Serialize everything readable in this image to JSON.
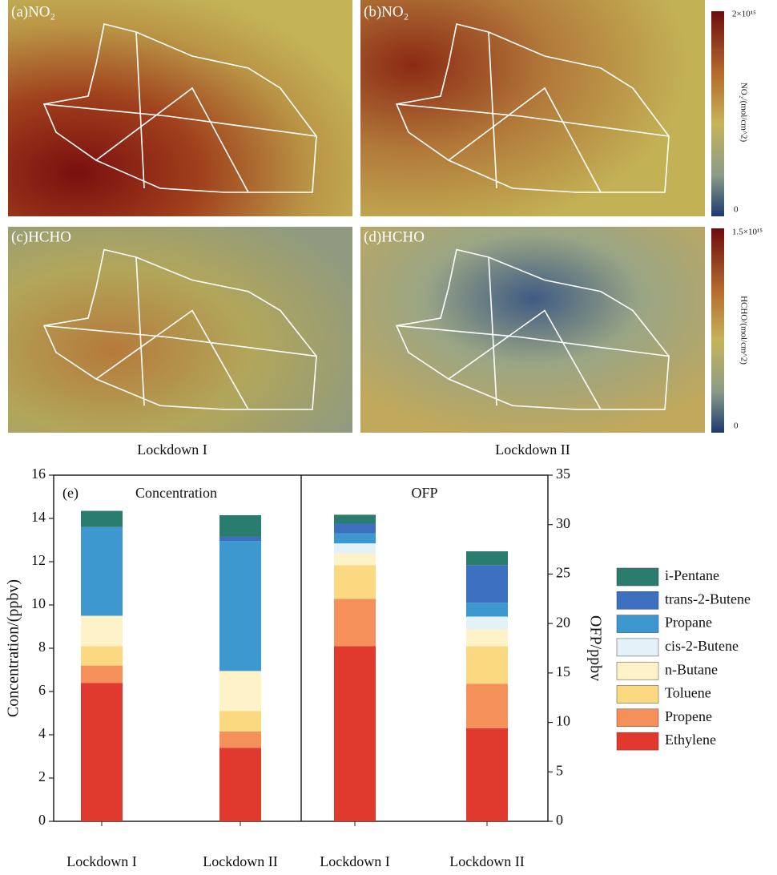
{
  "maps": {
    "panels": [
      {
        "label": "(a)NO₂"
      },
      {
        "label": "(b)NO₂"
      },
      {
        "label": "(c)HCHO"
      },
      {
        "label": "(d)HCHO"
      }
    ],
    "colorbars": [
      {
        "max_label": "2×10¹⁵",
        "min_label": "0",
        "title": "NO₂/(mol/cm^2)"
      },
      {
        "max_label": "1.5×10¹⁵",
        "min_label": "0",
        "title": "HCHO/(mol/cm^2)"
      }
    ],
    "column_labels": [
      "Lockdown I",
      "Lockdown II"
    ]
  },
  "chart_data": [
    {
      "type": "bar",
      "stacked": true,
      "annotation": "(e)",
      "title": "Concentration",
      "ylabel": "Concentration/(ppbv)",
      "categories": [
        "Lockdown I",
        "Lockdown II"
      ],
      "ylim": [
        0,
        16
      ],
      "yticks": [
        0,
        2,
        4,
        6,
        8,
        10,
        12,
        14,
        16
      ],
      "series": [
        {
          "name": "Ethylene",
          "color": "#e03a2e",
          "values": [
            6.4,
            3.4
          ]
        },
        {
          "name": "Propene",
          "color": "#f5905a",
          "values": [
            0.8,
            0.75
          ]
        },
        {
          "name": "Toluene",
          "color": "#fbd980",
          "values": [
            0.9,
            0.95
          ]
        },
        {
          "name": "n-Butane",
          "color": "#fef3c8",
          "values": [
            1.4,
            1.85
          ]
        },
        {
          "name": "cis-2-Butene",
          "color": "#e3f2f8",
          "values": [
            0,
            0
          ]
        },
        {
          "name": "Propane",
          "color": "#3d98d0",
          "values": [
            4.1,
            6.0
          ]
        },
        {
          "name": "trans-2-Butene",
          "color": "#3d6fc0",
          "values": [
            0,
            0.2
          ]
        },
        {
          "name": "i-Pentane",
          "color": "#2a7d6e",
          "values": [
            0.75,
            1.0
          ]
        }
      ]
    },
    {
      "type": "bar",
      "stacked": true,
      "title": "OFP",
      "y2label": "OFP/ppbv",
      "categories": [
        "Lockdown I",
        "Lockdown II"
      ],
      "y2lim": [
        0,
        35
      ],
      "y2ticks": [
        0,
        5,
        10,
        15,
        20,
        25,
        30,
        35
      ],
      "series": [
        {
          "name": "Ethylene",
          "color": "#e03a2e",
          "axis": "y2",
          "values": [
            17.7,
            9.4
          ]
        },
        {
          "name": "Propene",
          "color": "#f5905a",
          "axis": "y2",
          "values": [
            4.8,
            4.5
          ]
        },
        {
          "name": "Toluene",
          "color": "#fbd980",
          "axis": "y2",
          "values": [
            3.4,
            3.8
          ]
        },
        {
          "name": "n-Butane",
          "color": "#fef3c8",
          "axis": "y2",
          "values": [
            1.2,
            1.7
          ]
        },
        {
          "name": "cis-2-Butene",
          "color": "#e3f2f8",
          "axis": "y2",
          "values": [
            1.0,
            1.3
          ]
        },
        {
          "name": "Propane",
          "color": "#3d98d0",
          "axis": "y2",
          "values": [
            1.0,
            1.4
          ]
        },
        {
          "name": "trans-2-Butene",
          "color": "#3d6fc0",
          "axis": "y2",
          "values": [
            1.0,
            3.8
          ]
        },
        {
          "name": "i-Pentane",
          "color": "#2a7d6e",
          "axis": "y2",
          "values": [
            0.9,
            1.4
          ]
        }
      ]
    }
  ]
}
